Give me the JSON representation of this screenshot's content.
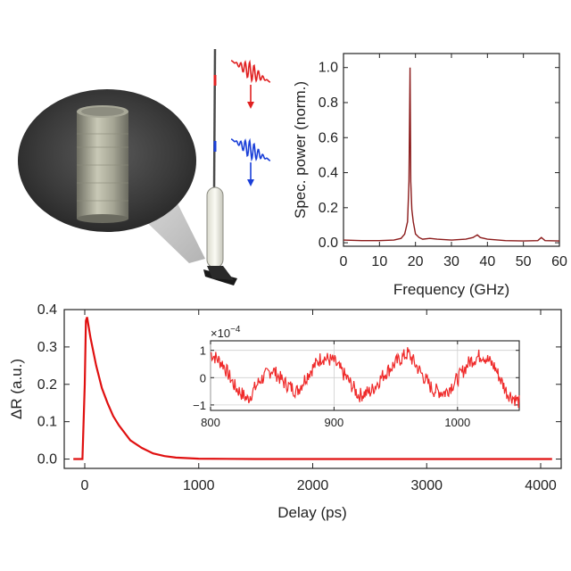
{
  "illustration": {
    "pump_pulse_color": "#e02020",
    "probe_pulse_color": "#1a3fd8"
  },
  "chart_data": [
    {
      "id": "spectrum",
      "type": "line",
      "title": "",
      "xlabel": "Frequency (GHz)",
      "ylabel": "Spec. power (norm.)",
      "xlim": [
        0,
        60
      ],
      "ylim": [
        -0.02,
        1.08
      ],
      "xticks": [
        0,
        10,
        20,
        30,
        40,
        50,
        60
      ],
      "yticks": [
        0.0,
        0.2,
        0.4,
        0.6,
        0.8,
        1.0
      ],
      "xtick_labels": [
        "0",
        "10",
        "20",
        "30",
        "40",
        "50",
        "60"
      ],
      "ytick_labels": [
        "0.0",
        "0.2",
        "0.4",
        "0.6",
        "0.8",
        "1.0"
      ],
      "color": "#8b1a1a",
      "grid": false,
      "series": [
        {
          "x": [
            0,
            5,
            10,
            14,
            16,
            17,
            17.8,
            18.2,
            18.5,
            18.7,
            19.0,
            19.4,
            20,
            21,
            22,
            24,
            26,
            30,
            34,
            36,
            37.2,
            38,
            40,
            45,
            50,
            54,
            55,
            56,
            60
          ],
          "y": [
            0.015,
            0.012,
            0.012,
            0.015,
            0.025,
            0.05,
            0.12,
            0.35,
            1.0,
            0.35,
            0.19,
            0.12,
            0.05,
            0.03,
            0.02,
            0.025,
            0.02,
            0.015,
            0.02,
            0.03,
            0.045,
            0.03,
            0.02,
            0.012,
            0.01,
            0.012,
            0.03,
            0.012,
            0.01
          ]
        }
      ]
    },
    {
      "id": "reflectivity",
      "type": "line",
      "title": "",
      "xlabel": "Delay (ps)",
      "ylabel": "ΔR (a.u.)",
      "xlim": [
        -180,
        4180
      ],
      "ylim": [
        -0.025,
        0.4
      ],
      "xticks": [
        0,
        1000,
        2000,
        3000,
        4000
      ],
      "yticks": [
        0.0,
        0.1,
        0.2,
        0.3,
        0.4
      ],
      "xtick_labels": [
        "0",
        "1000",
        "2000",
        "3000",
        "4000"
      ],
      "ytick_labels": [
        "0.0",
        "0.1",
        "0.2",
        "0.3",
        "0.4"
      ],
      "color": "#e01010",
      "grid": false,
      "series": [
        {
          "x": [
            -100,
            -40,
            -20,
            0,
            10,
            20,
            50,
            100,
            150,
            200,
            250,
            300,
            400,
            500,
            600,
            700,
            800,
            1000,
            1500,
            2000,
            3000,
            4100
          ],
          "y": [
            0.0,
            0.0,
            0.0,
            0.2,
            0.37,
            0.38,
            0.325,
            0.25,
            0.19,
            0.15,
            0.115,
            0.09,
            0.05,
            0.03,
            0.015,
            0.008,
            0.004,
            0.001,
            0.0,
            0.0,
            0.0,
            0.0
          ]
        }
      ]
    },
    {
      "id": "inset-oscillation",
      "type": "line",
      "title": "",
      "xlabel": "",
      "ylabel": "",
      "multiplier_label": "×10",
      "multiplier_exponent": "−4",
      "xlim": [
        800,
        1050
      ],
      "ylim": [
        -1.2,
        1.35
      ],
      "xticks": [
        800,
        900,
        1000
      ],
      "yticks": [
        -1,
        0,
        1
      ],
      "xtick_labels": [
        "800",
        "900",
        "1000"
      ],
      "ytick_labels": [
        "−1",
        "0",
        "1"
      ],
      "color": "#ef2a2a",
      "grid": true,
      "series": [
        {
          "x": [
            800,
            810,
            820,
            830,
            840,
            850,
            860,
            870,
            880,
            890,
            900,
            910,
            920,
            930,
            940,
            950,
            960,
            970,
            980,
            990,
            1000,
            1010,
            1020,
            1030,
            1040,
            1050
          ],
          "y": [
            0.9,
            0.5,
            -0.35,
            -0.8,
            -0.1,
            0.3,
            -0.2,
            -0.5,
            0.2,
            0.75,
            0.6,
            0.0,
            -0.65,
            -0.5,
            0.1,
            0.55,
            0.9,
            0.2,
            -0.45,
            -0.55,
            -0.05,
            0.6,
            0.85,
            0.4,
            -0.55,
            -0.9
          ]
        }
      ]
    }
  ]
}
